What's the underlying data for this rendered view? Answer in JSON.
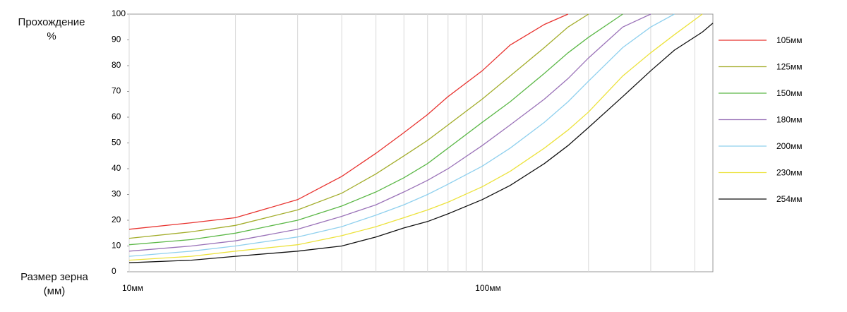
{
  "chart_data": {
    "type": "line",
    "ylabel": "Прохождение %",
    "xlabel": "Размер зерна (мм)",
    "log_x": true,
    "x": [
      10,
      15,
      20,
      30,
      40,
      50,
      60,
      70,
      80,
      100,
      120,
      150,
      175,
      200,
      250,
      300,
      350,
      420,
      450
    ],
    "xlim": [
      10,
      450
    ],
    "xticks": [
      {
        "value": 10,
        "label": "10мм"
      },
      {
        "value": 100,
        "label": "100мм"
      }
    ],
    "xgrid": [
      20,
      30,
      40,
      50,
      60,
      70,
      80,
      90,
      200,
      300,
      400
    ],
    "ylim": [
      0,
      100
    ],
    "yticks": [
      0,
      10,
      20,
      30,
      40,
      50,
      60,
      70,
      80,
      90,
      100
    ],
    "series": [
      {
        "name": "105мм",
        "color": "#e8332f",
        "values": [
          16.5,
          19,
          21,
          28,
          37,
          46,
          54,
          61,
          68,
          78,
          88,
          96,
          100,
          null,
          null,
          null,
          null,
          null,
          null
        ]
      },
      {
        "name": "125мм",
        "color": "#a3ad2b",
        "values": [
          13,
          15.5,
          18,
          24,
          30.5,
          38,
          45,
          51,
          57,
          67,
          76,
          87,
          95,
          100,
          null,
          null,
          null,
          null,
          null
        ]
      },
      {
        "name": "150мм",
        "color": "#5cb848",
        "values": [
          10.5,
          12.5,
          15,
          20,
          25.5,
          31,
          36.5,
          42,
          48,
          58,
          66,
          77,
          85,
          91,
          100,
          null,
          null,
          null,
          null
        ]
      },
      {
        "name": "180мм",
        "color": "#9a72b8",
        "values": [
          8,
          10,
          12,
          16.5,
          21.5,
          26,
          31,
          35.5,
          40,
          49,
          57,
          67,
          75,
          83,
          95,
          100,
          null,
          null,
          null
        ]
      },
      {
        "name": "200мм",
        "color": "#8fd0ee",
        "values": [
          6,
          8,
          10,
          13.5,
          17.5,
          22,
          26,
          30,
          34,
          41,
          48,
          58,
          66,
          74,
          87,
          95,
          100,
          null,
          null
        ]
      },
      {
        "name": "230мм",
        "color": "#ece23c",
        "values": [
          4.5,
          6,
          8,
          10.5,
          14,
          17.5,
          21,
          24,
          27,
          33,
          39,
          48,
          55,
          62,
          76,
          85,
          92,
          100,
          null
        ]
      },
      {
        "name": "254мм",
        "color": "#111111",
        "values": [
          3.5,
          4.5,
          6,
          8,
          10,
          13.5,
          17,
          19.5,
          22.5,
          28,
          33.5,
          42,
          49,
          56,
          68,
          78,
          86,
          93,
          96.5
        ]
      }
    ]
  }
}
